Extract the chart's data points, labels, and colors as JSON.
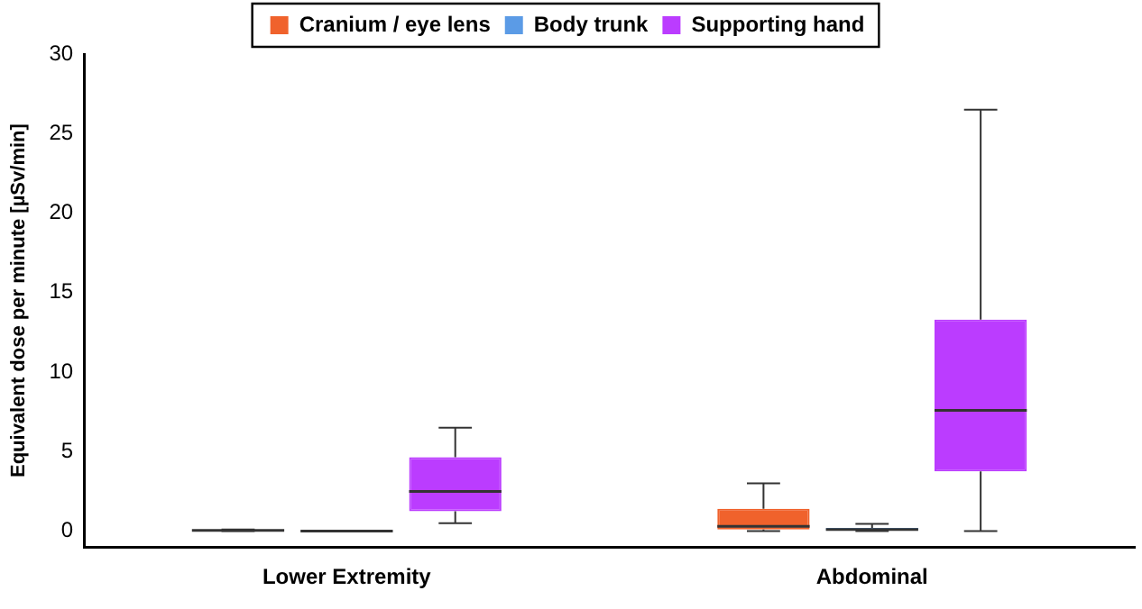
{
  "chart_data": {
    "type": "box",
    "ylabel": "Equivalent dose per minute [µSv/min]",
    "categories": [
      "Lower Extremity",
      "Abdominal"
    ],
    "ylim": [
      -1,
      30
    ],
    "yticks": [
      0,
      5,
      10,
      15,
      20,
      25,
      30
    ],
    "grid": false,
    "legend": "top",
    "series": [
      {
        "name": "Cranium / eye lens",
        "color": "#f0622c",
        "boxes": [
          {
            "low": 0,
            "q1": 0.02,
            "median": 0.05,
            "q3": 0.08,
            "high": 0.1
          },
          {
            "low": 0,
            "q1": 0.1,
            "median": 0.3,
            "q3": 1.4,
            "high": 3.0
          }
        ]
      },
      {
        "name": "Body trunk",
        "color": "#5b9be6",
        "boxes": [
          {
            "low": 0,
            "q1": 0,
            "median": 0,
            "q3": 0.02,
            "high": 0.03
          },
          {
            "low": 0,
            "q1": 0.05,
            "median": 0.1,
            "q3": 0.2,
            "high": 0.45
          }
        ]
      },
      {
        "name": "Supporting hand",
        "color": "#bb3cff",
        "boxes": [
          {
            "low": 0.5,
            "q1": 1.25,
            "median": 2.5,
            "q3": 4.65,
            "high": 6.5
          },
          {
            "low": 0,
            "q1": 3.75,
            "median": 7.6,
            "q3": 13.3,
            "high": 26.5
          }
        ]
      }
    ]
  }
}
